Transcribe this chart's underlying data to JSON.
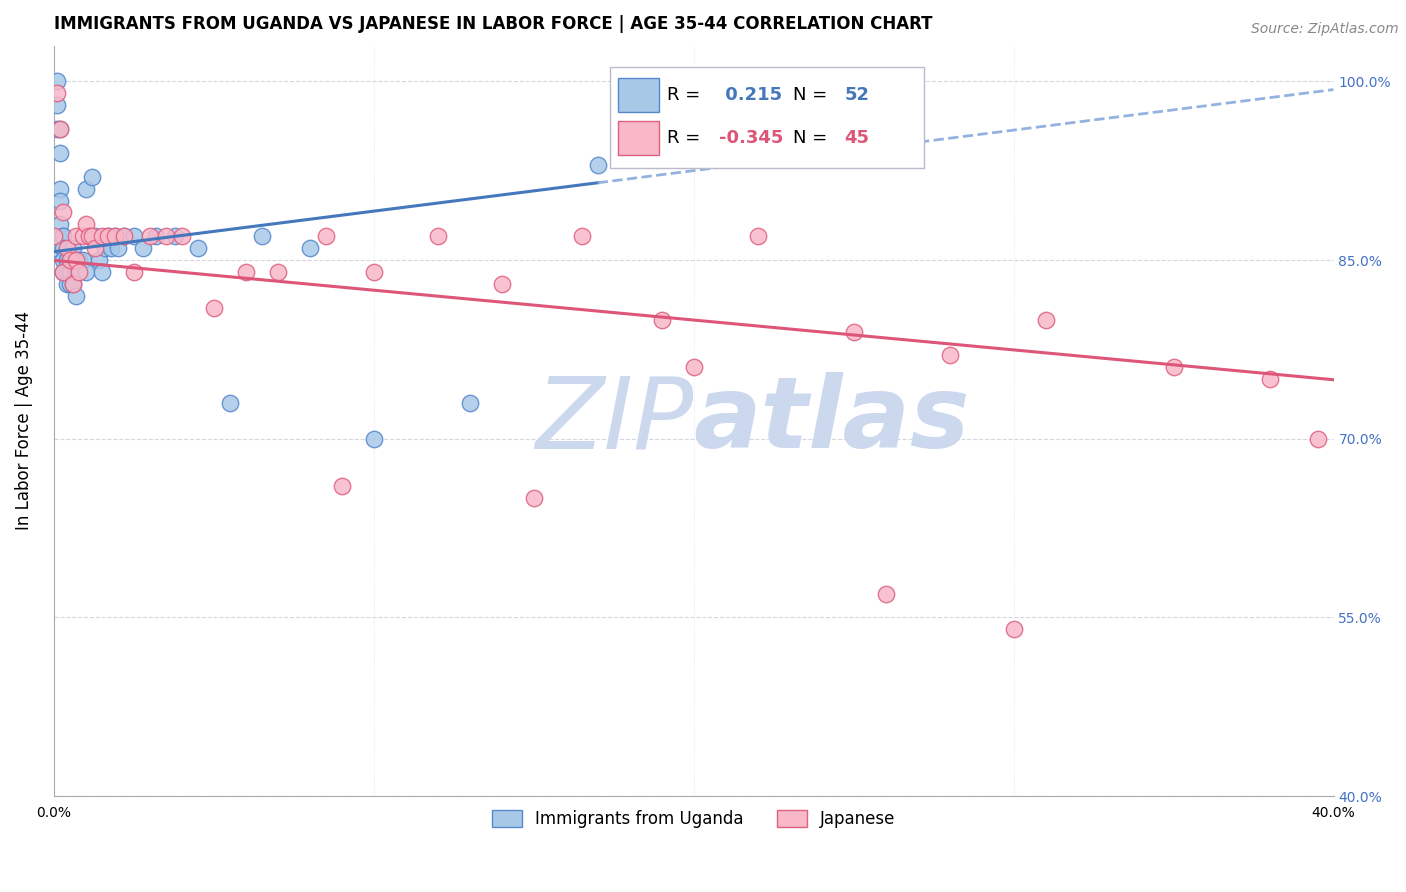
{
  "title": "IMMIGRANTS FROM UGANDA VS JAPANESE IN LABOR FORCE | AGE 35-44 CORRELATION CHART",
  "source": "Source: ZipAtlas.com",
  "ylabel": "In Labor Force | Age 35-44",
  "xlim": [
    0.0,
    0.4
  ],
  "ylim": [
    0.4,
    1.03
  ],
  "ytick_positions": [
    0.4,
    0.55,
    0.7,
    0.85,
    1.0
  ],
  "yticklabels_right": [
    "40.0%",
    "55.0%",
    "70.0%",
    "85.0%",
    "100.0%"
  ],
  "uganda_R": 0.215,
  "uganda_N": 52,
  "japanese_R": -0.345,
  "japanese_N": 45,
  "uganda_color": "#a8c8e8",
  "japanese_color": "#f8b8c8",
  "uganda_edge_color": "#5588cc",
  "japanese_edge_color": "#e06080",
  "uganda_line_color": "#4477bb",
  "japanese_line_color": "#dd5577",
  "dashed_line_color": "#88aadd",
  "uganda_points_x": [
    0.0,
    0.0,
    0.001,
    0.001,
    0.001,
    0.002,
    0.002,
    0.002,
    0.002,
    0.002,
    0.003,
    0.003,
    0.003,
    0.003,
    0.003,
    0.004,
    0.004,
    0.004,
    0.004,
    0.005,
    0.005,
    0.005,
    0.006,
    0.006,
    0.007,
    0.007,
    0.008,
    0.009,
    0.01,
    0.01,
    0.011,
    0.012,
    0.013,
    0.014,
    0.015,
    0.016,
    0.017,
    0.018,
    0.019,
    0.02,
    0.022,
    0.025,
    0.028,
    0.032,
    0.038,
    0.045,
    0.055,
    0.065,
    0.08,
    0.1,
    0.13,
    0.17
  ],
  "uganda_points_y": [
    0.87,
    0.86,
    1.0,
    0.98,
    0.96,
    0.94,
    0.96,
    0.91,
    0.9,
    0.88,
    0.87,
    0.87,
    0.86,
    0.85,
    0.84,
    0.85,
    0.85,
    0.84,
    0.83,
    0.84,
    0.85,
    0.83,
    0.86,
    0.83,
    0.84,
    0.82,
    0.85,
    0.85,
    0.84,
    0.91,
    0.87,
    0.92,
    0.87,
    0.85,
    0.84,
    0.86,
    0.87,
    0.86,
    0.87,
    0.86,
    0.87,
    0.87,
    0.86,
    0.87,
    0.87,
    0.86,
    0.73,
    0.87,
    0.86,
    0.7,
    0.73,
    0.93
  ],
  "japanese_points_x": [
    0.0,
    0.001,
    0.002,
    0.003,
    0.003,
    0.004,
    0.005,
    0.006,
    0.007,
    0.007,
    0.008,
    0.009,
    0.01,
    0.011,
    0.012,
    0.013,
    0.015,
    0.017,
    0.019,
    0.022,
    0.025,
    0.03,
    0.035,
    0.04,
    0.05,
    0.06,
    0.07,
    0.085,
    0.1,
    0.12,
    0.14,
    0.165,
    0.19,
    0.22,
    0.25,
    0.28,
    0.31,
    0.35,
    0.38,
    0.395,
    0.09,
    0.15,
    0.2,
    0.26,
    0.3
  ],
  "japanese_points_y": [
    0.87,
    0.99,
    0.96,
    0.84,
    0.89,
    0.86,
    0.85,
    0.83,
    0.87,
    0.85,
    0.84,
    0.87,
    0.88,
    0.87,
    0.87,
    0.86,
    0.87,
    0.87,
    0.87,
    0.87,
    0.84,
    0.87,
    0.87,
    0.87,
    0.81,
    0.84,
    0.84,
    0.87,
    0.84,
    0.87,
    0.83,
    0.87,
    0.8,
    0.87,
    0.79,
    0.77,
    0.8,
    0.76,
    0.75,
    0.7,
    0.66,
    0.65,
    0.76,
    0.57,
    0.54
  ],
  "watermark_zip": "ZIP",
  "watermark_atlas": "atlas",
  "watermark_color": "#ccd8ee",
  "watermark_fontsize": 72,
  "title_fontsize": 12,
  "source_fontsize": 10,
  "axis_label_fontsize": 12,
  "tick_fontsize": 10,
  "right_tick_color": "#4472c4",
  "grid_color": "#ccccdd",
  "grid_alpha": 0.8
}
